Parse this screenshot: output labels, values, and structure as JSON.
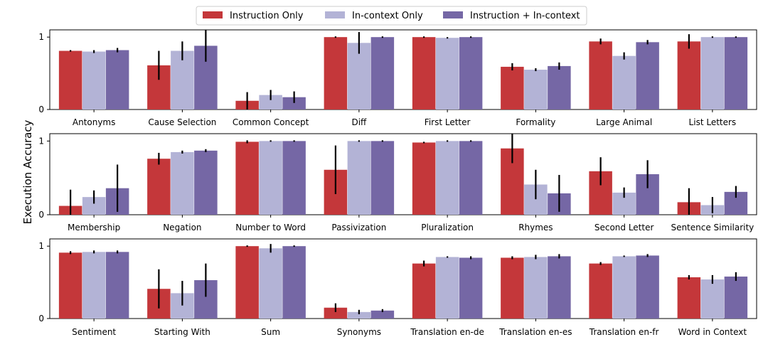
{
  "chart_data": {
    "type": "bar",
    "ylabel": "Execution Accuracy",
    "ylim": [
      0,
      1.1
    ],
    "yticks": [
      0,
      1
    ],
    "legend": {
      "placement": "top-center",
      "entries": [
        "Instruction Only",
        "In-context Only",
        "Instruction + In-context"
      ]
    },
    "series_colors": [
      "#C4373A",
      "#B3B3D6",
      "#7567A5"
    ],
    "panels": [
      {
        "categories": [
          "Antonyms",
          "Cause Selection",
          "Common Concept",
          "Diff",
          "First Letter",
          "Formality",
          "Large Animal",
          "List Letters"
        ],
        "series": [
          {
            "name": "Instruction Only",
            "values": [
              0.81,
              0.61,
              0.12,
              1.0,
              1.0,
              0.59,
              0.94,
              0.94
            ],
            "errors": [
              0.01,
              0.2,
              0.12,
              0.01,
              0.01,
              0.05,
              0.04,
              0.1
            ]
          },
          {
            "name": "In-context Only",
            "values": [
              0.8,
              0.81,
              0.2,
              0.92,
              0.99,
              0.55,
              0.74,
              1.0
            ],
            "errors": [
              0.02,
              0.13,
              0.07,
              0.15,
              0.01,
              0.02,
              0.05,
              0.01
            ]
          },
          {
            "name": "Instruction + In-context",
            "values": [
              0.82,
              0.88,
              0.17,
              1.0,
              1.0,
              0.6,
              0.93,
              1.0
            ],
            "errors": [
              0.03,
              0.22,
              0.08,
              0.01,
              0.01,
              0.05,
              0.03,
              0.01
            ]
          }
        ]
      },
      {
        "categories": [
          "Membership",
          "Negation",
          "Number to Word",
          "Passivization",
          "Pluralization",
          "Rhymes",
          "Second Letter",
          "Sentence Similarity"
        ],
        "series": [
          {
            "name": "Instruction Only",
            "values": [
              0.12,
              0.76,
              0.99,
              0.61,
              0.98,
              0.9,
              0.59,
              0.17
            ],
            "errors": [
              0.22,
              0.08,
              0.02,
              0.33,
              0.01,
              0.2,
              0.19,
              0.19
            ]
          },
          {
            "name": "In-context Only",
            "values": [
              0.24,
              0.85,
              1.0,
              1.0,
              1.0,
              0.41,
              0.3,
              0.13
            ],
            "errors": [
              0.09,
              0.02,
              0.01,
              0.01,
              0.01,
              0.2,
              0.07,
              0.11
            ]
          },
          {
            "name": "Instruction + In-context",
            "values": [
              0.36,
              0.87,
              1.0,
              1.0,
              1.0,
              0.29,
              0.55,
              0.31
            ],
            "errors": [
              0.32,
              0.02,
              0.01,
              0.01,
              0.01,
              0.25,
              0.19,
              0.08
            ]
          }
        ]
      },
      {
        "categories": [
          "Sentiment",
          "Starting With",
          "Sum",
          "Synonyms",
          "Translation en-de",
          "Translation en-es",
          "Translation en-fr",
          "Word in Context"
        ],
        "series": [
          {
            "name": "Instruction Only",
            "values": [
              0.91,
              0.41,
              1.0,
              0.15,
              0.76,
              0.84,
              0.76,
              0.57
            ],
            "errors": [
              0.02,
              0.27,
              0.01,
              0.06,
              0.04,
              0.02,
              0.02,
              0.03
            ]
          },
          {
            "name": "In-context Only",
            "values": [
              0.92,
              0.35,
              0.97,
              0.09,
              0.85,
              0.85,
              0.86,
              0.54
            ],
            "errors": [
              0.02,
              0.17,
              0.06,
              0.03,
              0.01,
              0.03,
              0.01,
              0.06
            ]
          },
          {
            "name": "Instruction + In-context",
            "values": [
              0.92,
              0.53,
              1.0,
              0.11,
              0.84,
              0.86,
              0.87,
              0.58
            ],
            "errors": [
              0.02,
              0.23,
              0.01,
              0.02,
              0.02,
              0.03,
              0.02,
              0.06
            ]
          }
        ]
      }
    ]
  }
}
